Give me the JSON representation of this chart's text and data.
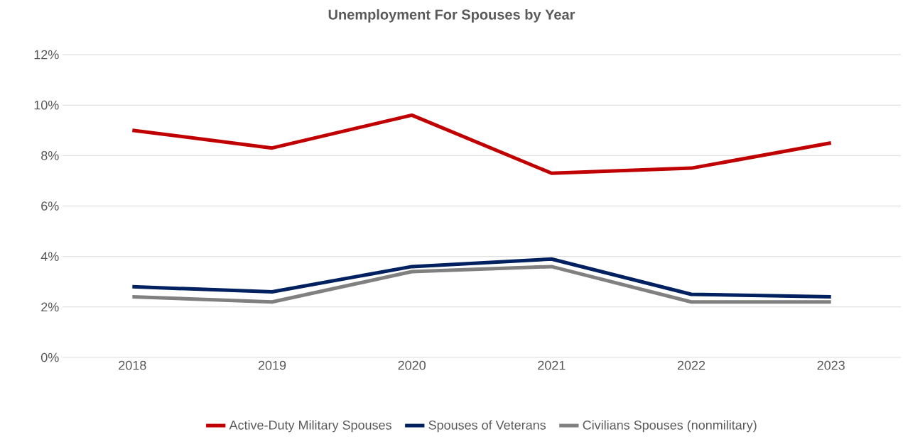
{
  "chart_data": {
    "type": "line",
    "title": "Unemployment For Spouses by Year",
    "categories": [
      "2018",
      "2019",
      "2020",
      "2021",
      "2022",
      "2023"
    ],
    "series": [
      {
        "name": "Active-Duty Military Spouses",
        "color": "#c00000",
        "values": [
          9.0,
          8.3,
          9.6,
          7.3,
          7.5,
          8.5
        ]
      },
      {
        "name": "Spouses of Veterans",
        "color": "#002060",
        "values": [
          2.8,
          2.6,
          3.6,
          3.9,
          2.5,
          2.4
        ]
      },
      {
        "name": "Civilians Spouses (nonmilitary)",
        "color": "#808080",
        "values": [
          2.4,
          2.2,
          3.4,
          3.6,
          2.2,
          2.2
        ]
      }
    ],
    "ylim": [
      0,
      12
    ],
    "yticks": [
      {
        "value": 0,
        "label": "0%"
      },
      {
        "value": 2,
        "label": "2%"
      },
      {
        "value": 4,
        "label": "4%"
      },
      {
        "value": 6,
        "label": "6%"
      },
      {
        "value": 8,
        "label": "8%"
      },
      {
        "value": 10,
        "label": "10%"
      },
      {
        "value": 12,
        "label": "12%"
      }
    ],
    "grid": "y",
    "legend": "bottom"
  }
}
